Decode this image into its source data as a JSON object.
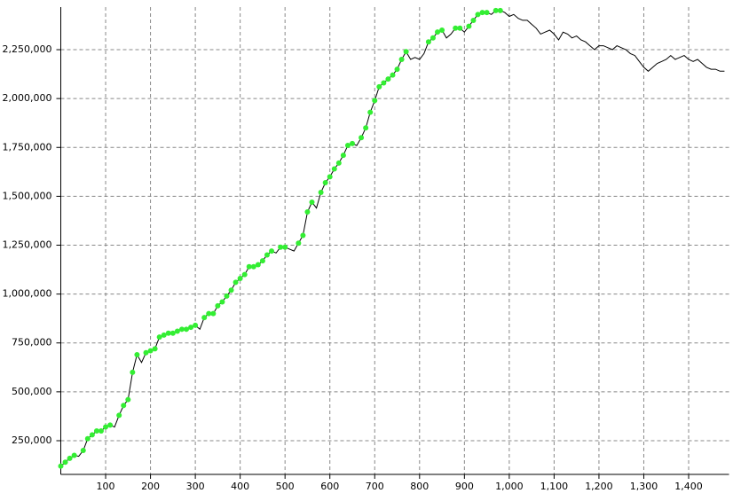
{
  "chart_data": {
    "type": "line",
    "x": [
      0,
      10,
      20,
      30,
      40,
      50,
      60,
      70,
      80,
      90,
      100,
      110,
      120,
      130,
      140,
      150,
      160,
      170,
      180,
      190,
      200,
      210,
      220,
      230,
      240,
      250,
      260,
      270,
      280,
      290,
      300,
      310,
      320,
      330,
      340,
      350,
      360,
      370,
      380,
      390,
      400,
      410,
      420,
      430,
      440,
      450,
      460,
      470,
      480,
      490,
      500,
      510,
      520,
      530,
      540,
      550,
      560,
      570,
      580,
      590,
      600,
      610,
      620,
      630,
      640,
      650,
      660,
      670,
      680,
      690,
      700,
      710,
      720,
      730,
      740,
      750,
      760,
      770,
      780,
      790,
      800,
      810,
      820,
      830,
      840,
      850,
      860,
      870,
      880,
      890,
      900,
      910,
      920,
      930,
      940,
      950,
      960,
      970,
      980,
      990,
      1000,
      1010,
      1020,
      1030,
      1040,
      1050,
      1060,
      1070,
      1080,
      1090,
      1100,
      1110,
      1120,
      1130,
      1140,
      1150,
      1160,
      1170,
      1180,
      1190,
      1200,
      1210,
      1220,
      1230,
      1240,
      1250,
      1260,
      1270,
      1280,
      1290,
      1300,
      1310,
      1320,
      1330,
      1340,
      1350,
      1360,
      1370,
      1380,
      1390,
      1400,
      1410,
      1420,
      1430,
      1440,
      1450,
      1460,
      1470,
      1480
    ],
    "series": [
      {
        "color": "#000000",
        "values": [
          120000,
          140000,
          160000,
          175000,
          170000,
          200000,
          260000,
          280000,
          300000,
          300000,
          320000,
          330000,
          320000,
          380000,
          430000,
          460000,
          600000,
          690000,
          650000,
          700000,
          710000,
          720000,
          780000,
          790000,
          800000,
          800000,
          810000,
          820000,
          820000,
          830000,
          840000,
          820000,
          880000,
          900000,
          900000,
          940000,
          960000,
          990000,
          1020000,
          1060000,
          1080000,
          1100000,
          1140000,
          1140000,
          1150000,
          1170000,
          1200000,
          1220000,
          1210000,
          1240000,
          1240000,
          1230000,
          1220000,
          1260000,
          1300000,
          1420000,
          1470000,
          1440000,
          1520000,
          1570000,
          1600000,
          1640000,
          1670000,
          1710000,
          1760000,
          1770000,
          1760000,
          1800000,
          1850000,
          1930000,
          1990000,
          2060000,
          2080000,
          2100000,
          2120000,
          2150000,
          2200000,
          2240000,
          2200000,
          2210000,
          2200000,
          2230000,
          2290000,
          2310000,
          2340000,
          2350000,
          2310000,
          2330000,
          2360000,
          2360000,
          2340000,
          2370000,
          2400000,
          2430000,
          2440000,
          2440000,
          2430000,
          2450000,
          2450000,
          2440000,
          2420000,
          2430000,
          2410000,
          2400000,
          2400000,
          2380000,
          2360000,
          2330000,
          2340000,
          2350000,
          2330000,
          2300000,
          2340000,
          2330000,
          2310000,
          2320000,
          2300000,
          2290000,
          2270000,
          2250000,
          2270000,
          2270000,
          2260000,
          2250000,
          2270000,
          2260000,
          2250000,
          2230000,
          2220000,
          2190000,
          2160000,
          2140000,
          2160000,
          2180000,
          2190000,
          2200000,
          2220000,
          2200000,
          2210000,
          2220000,
          2200000,
          2190000,
          2200000,
          2180000,
          2160000,
          2150000,
          2150000,
          2140000,
          2140000
        ]
      },
      {
        "color": "#33ee33",
        "marker": "circle",
        "line": false,
        "values": [
          120000,
          140000,
          160000,
          175000,
          null,
          200000,
          260000,
          280000,
          300000,
          300000,
          320000,
          330000,
          null,
          380000,
          430000,
          460000,
          600000,
          690000,
          null,
          700000,
          710000,
          720000,
          780000,
          790000,
          800000,
          800000,
          810000,
          820000,
          820000,
          830000,
          840000,
          null,
          880000,
          900000,
          900000,
          940000,
          960000,
          990000,
          1020000,
          1060000,
          1080000,
          1100000,
          1140000,
          1140000,
          1150000,
          1170000,
          1200000,
          1220000,
          null,
          1240000,
          1240000,
          null,
          null,
          1260000,
          1300000,
          1420000,
          1470000,
          null,
          1520000,
          1570000,
          1600000,
          1640000,
          1670000,
          1710000,
          1760000,
          1770000,
          null,
          1800000,
          1850000,
          1930000,
          1990000,
          2060000,
          2080000,
          2100000,
          2120000,
          2150000,
          2200000,
          2240000,
          null,
          null,
          null,
          null,
          2290000,
          2310000,
          2340000,
          2350000,
          null,
          null,
          2360000,
          2360000,
          null,
          2370000,
          2400000,
          2430000,
          2440000,
          2440000,
          null,
          2450000,
          2450000,
          null,
          null,
          null,
          null,
          null,
          null,
          null,
          null,
          null,
          null,
          null,
          null,
          null,
          null,
          null,
          null,
          null,
          null,
          null,
          null,
          null,
          null,
          null,
          null,
          null,
          null,
          null,
          null,
          null,
          null,
          null,
          null,
          null,
          null,
          null,
          null,
          null,
          null,
          null,
          null,
          null,
          null,
          null,
          null,
          null,
          null,
          null,
          null,
          null,
          null
        ]
      }
    ],
    "xlim": [
      0,
      1490
    ],
    "xticks": [
      {
        "value": 100,
        "label": "100"
      },
      {
        "value": 200,
        "label": "200"
      },
      {
        "value": 300,
        "label": "300"
      },
      {
        "value": 400,
        "label": "400"
      },
      {
        "value": 500,
        "label": "500"
      },
      {
        "value": 600,
        "label": "600"
      },
      {
        "value": 700,
        "label": "700"
      },
      {
        "value": 800,
        "label": "800"
      },
      {
        "value": 900,
        "label": "900"
      },
      {
        "value": 1000,
        "label": "1,000"
      },
      {
        "value": 1100,
        "label": "1,100"
      },
      {
        "value": 1200,
        "label": "1,200"
      },
      {
        "value": 1300,
        "label": "1,300"
      },
      {
        "value": 1400,
        "label": "1,400"
      }
    ],
    "ylim": [
      77600,
      2467800
    ],
    "yticks": [
      {
        "value": 250000,
        "label": "250,000"
      },
      {
        "value": 500000,
        "label": "500,000"
      },
      {
        "value": 750000,
        "label": "750,000"
      },
      {
        "value": 1000000,
        "label": "1,000,000"
      },
      {
        "value": 1250000,
        "label": "1,250,000"
      },
      {
        "value": 1500000,
        "label": "1,500,000"
      },
      {
        "value": 1750000,
        "label": "1,750,000"
      },
      {
        "value": 2000000,
        "label": "2,000,000"
      },
      {
        "value": 2250000,
        "label": "2,250,000"
      }
    ],
    "grid": true
  }
}
